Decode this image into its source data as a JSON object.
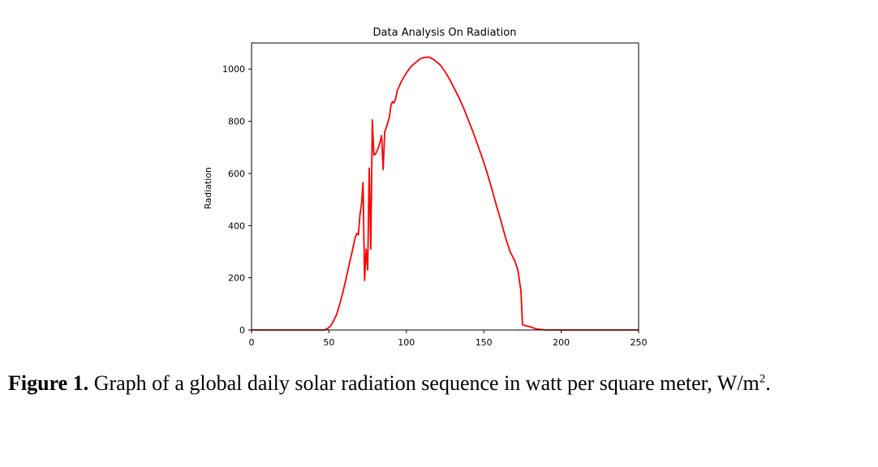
{
  "chart_data": {
    "type": "line",
    "title": "Data Analysis On Radiation",
    "xlabel": "",
    "ylabel": "Radiation",
    "xlim": [
      0,
      250
    ],
    "ylim": [
      0,
      1100
    ],
    "xticks": [
      0,
      50,
      100,
      150,
      200,
      250
    ],
    "yticks": [
      0,
      200,
      400,
      600,
      800,
      1000
    ],
    "xtick_labels": [
      "0",
      "50",
      "100",
      "150",
      "200",
      "250"
    ],
    "ytick_labels": [
      "0",
      "200",
      "400",
      "600",
      "800",
      "1000"
    ],
    "grid": false,
    "series": [
      {
        "color": "#ff0000",
        "x": [
          0,
          47,
          49,
          51,
          53,
          55,
          57,
          59,
          61,
          63,
          65,
          66,
          67,
          68,
          69,
          70,
          71,
          72,
          73,
          74,
          75,
          76,
          77,
          78,
          79,
          80,
          81,
          82,
          83,
          84,
          85,
          86,
          87,
          88,
          89,
          90,
          91,
          92,
          93,
          94,
          95,
          97,
          100,
          103,
          106,
          109,
          112,
          115,
          118,
          120,
          122,
          125,
          128,
          131,
          134,
          137,
          140,
          143,
          146,
          149,
          152,
          155,
          158,
          161,
          164,
          167,
          170,
          172,
          174,
          175,
          176,
          177,
          178,
          180,
          182,
          184,
          187,
          190,
          193,
          196,
          200,
          210,
          230,
          250
        ],
        "y": [
          0,
          0,
          5,
          15,
          35,
          60,
          100,
          145,
          195,
          250,
          300,
          330,
          355,
          370,
          365,
          440,
          480,
          565,
          190,
          310,
          230,
          620,
          310,
          805,
          670,
          675,
          685,
          700,
          720,
          745,
          615,
          760,
          775,
          795,
          815,
          860,
          875,
          870,
          885,
          915,
          930,
          955,
          985,
          1010,
          1025,
          1040,
          1045,
          1045,
          1035,
          1025,
          1015,
          990,
          960,
          925,
          890,
          850,
          805,
          760,
          710,
          660,
          605,
          545,
          480,
          420,
          355,
          300,
          265,
          230,
          150,
          20,
          18,
          16,
          15,
          12,
          8,
          4,
          2,
          0,
          0,
          0,
          0,
          0,
          0,
          0
        ]
      }
    ]
  },
  "caption": {
    "label": "Figure 1.",
    "text": " Graph of a global daily solar radiation sequence in watt per square meter, W/m",
    "sup": "2",
    "end": "."
  }
}
